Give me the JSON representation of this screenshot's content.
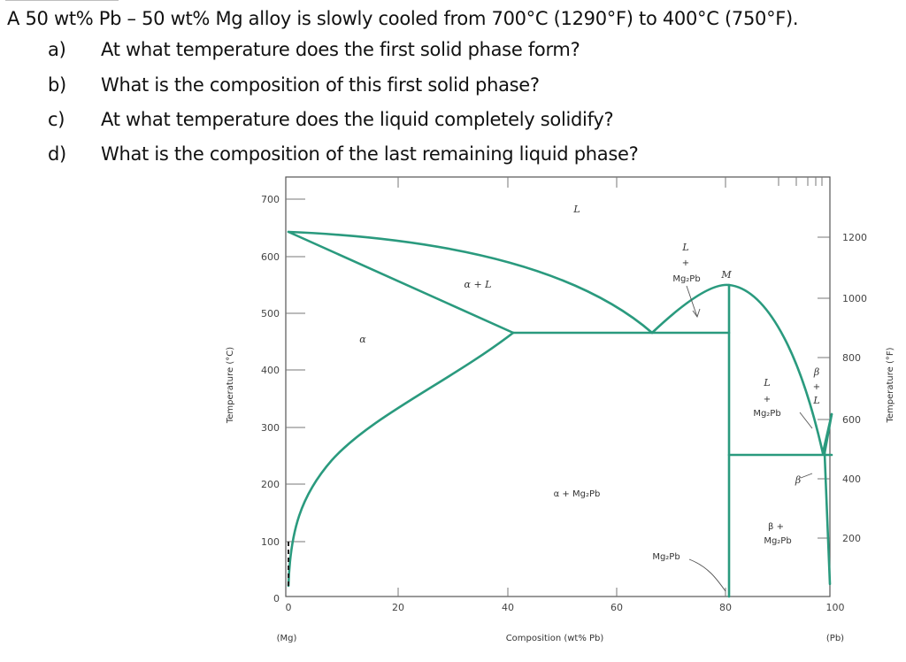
{
  "problem": {
    "intro": "A 50 wt% Pb – 50 wt% Mg alloy is slowly cooled from 700°C (1290°F) to 400°C (750°F).",
    "questions": [
      {
        "label": "a)",
        "text": "At what temperature does the first solid phase form?"
      },
      {
        "label": "b)",
        "text": "What is the composition of this first solid phase?"
      },
      {
        "label": "c)",
        "text": "At what temperature does the liquid completely solidify?"
      },
      {
        "label": "d)",
        "text": "What is the composition of the last remaining liquid phase?"
      }
    ]
  },
  "diagram": {
    "y_left_label": "Temperature (°C)",
    "y_right_label": "Temperature (°F)",
    "x_label": "Composition (wt% Pb)",
    "x_end_left": "(Mg)",
    "x_end_right": "(Pb)",
    "x_ticks": [
      "0",
      "20",
      "40",
      "60",
      "80",
      "100"
    ],
    "y_left_ticks": [
      "0",
      "100",
      "200",
      "300",
      "400",
      "500",
      "600",
      "700"
    ],
    "y_right_ticks": [
      "200",
      "400",
      "600",
      "800",
      "1000",
      "1200"
    ],
    "regions": {
      "liquid": "L",
      "alpha": "α",
      "alpha_plus_l": "α + L",
      "l_plus_mg2pb_top_l": "L",
      "l_plus_mg2pb_top_plus": "+",
      "l_plus_mg2pb_top_mg": "Mg₂Pb",
      "point_m": "M",
      "l_plus_mg2pb_right_l": "L",
      "l_plus_mg2pb_right_plus": "+",
      "l_plus_mg2pb_right_mg": "Mg₂Pb",
      "beta_l_beta": "β",
      "beta_l_plus": "+",
      "beta_l_l": "L",
      "beta": "β",
      "alpha_mg2pb": "α + Mg₂Pb",
      "beta_mg2pb_b": "β +",
      "beta_mg2pb_mg": "Mg₂Pb",
      "mg2pb": "Mg₂Pb"
    },
    "colors": {
      "curve": "#2a9a7e",
      "frame": "#555555"
    }
  }
}
